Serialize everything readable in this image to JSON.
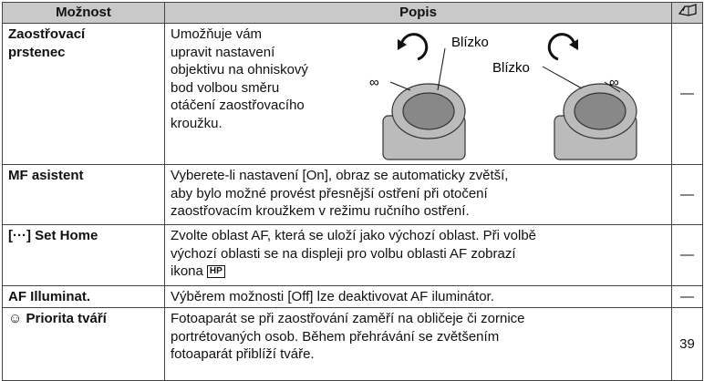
{
  "table": {
    "header": [
      "Možnost",
      "Popis"
    ],
    "rows": [
      {
        "option": [
          "Zaostřovací",
          "prstenec"
        ],
        "description": [
          "Umožňuje vám",
          "upravit nastavení",
          "objektivu na ohniskový",
          "bod volbou směru",
          "otáčení zaostřovacího",
          "kroužku."
        ],
        "figure_labels": [
          "Blízko",
          "∞",
          "Blízko",
          "∞"
        ],
        "ref": "—"
      },
      {
        "option": [
          "MF asistent"
        ],
        "description": [
          "Vyberete-li nastavení [On], obraz se automaticky zvětší,",
          "aby bylo možné provést přesnější ostření při otočení",
          "zaostřovacím kroužkem v režimu ručního ostření."
        ],
        "ref": "—"
      },
      {
        "option": [
          "[···] Set Home"
        ],
        "description": [
          "Zvolte oblast AF, která se uloží jako výchozí oblast. Při volbě",
          "výchozí oblasti se na displeji pro volbu oblasti AF zobrazí",
          "ikona"
        ],
        "icon": "HP",
        "ref": "—"
      },
      {
        "option": [
          "AF Illuminat."
        ],
        "description": [
          "Výběrem možnosti [Off] lze deaktivovat AF iluminátor."
        ],
        "ref": "—"
      },
      {
        "option": [
          "☺ Priorita tváří"
        ],
        "description": [
          "Fotoaparát se při zaostřování zaměří na obličeje či zornice",
          "portrétovaných osob. Během přehrávání se zvětšením",
          "fotoaparát přiblíží tváře."
        ],
        "ref": "39"
      }
    ]
  }
}
